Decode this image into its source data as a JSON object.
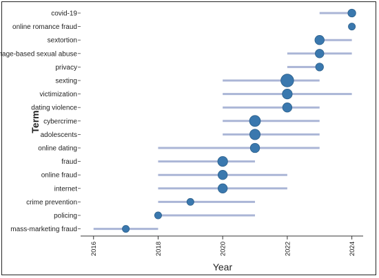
{
  "chart_data": {
    "type": "scatter",
    "xlabel": "Year",
    "ylabel": "Term",
    "xlim": [
      2015.6,
      2024.35
    ],
    "x_ticks": [
      2016,
      2018,
      2020,
      2022,
      2024
    ],
    "grid": false,
    "colors": {
      "range_bar": "#aab5d6",
      "point": "#3a78ae",
      "point_stroke": "#2c5f8a"
    },
    "series": [
      {
        "term": "covid-19",
        "start": 2023,
        "end": 2024,
        "peak": 2024,
        "frequency": 3
      },
      {
        "term": "online romance fraud",
        "start": 2024,
        "end": 2024,
        "peak": 2024,
        "frequency": 2
      },
      {
        "term": "sextortion",
        "start": 2023,
        "end": 2024,
        "peak": 2023,
        "frequency": 5
      },
      {
        "term": "image-based sexual abuse",
        "start": 2022,
        "end": 2024,
        "peak": 2023,
        "frequency": 4
      },
      {
        "term": "privacy",
        "start": 2022,
        "end": 2023,
        "peak": 2023,
        "frequency": 3
      },
      {
        "term": "sexting",
        "start": 2020,
        "end": 2023,
        "peak": 2022,
        "frequency": 12
      },
      {
        "term": "victimization",
        "start": 2020,
        "end": 2024,
        "peak": 2022,
        "frequency": 6
      },
      {
        "term": "dating violence",
        "start": 2020,
        "end": 2023,
        "peak": 2022,
        "frequency": 5
      },
      {
        "term": "cybercrime",
        "start": 2020,
        "end": 2023,
        "peak": 2021,
        "frequency": 8
      },
      {
        "term": "adolescents",
        "start": 2020,
        "end": 2023,
        "peak": 2021,
        "frequency": 7
      },
      {
        "term": "online dating",
        "start": 2018,
        "end": 2023,
        "peak": 2021,
        "frequency": 5
      },
      {
        "term": "fraud",
        "start": 2018,
        "end": 2021,
        "peak": 2020,
        "frequency": 6
      },
      {
        "term": "online fraud",
        "start": 2018,
        "end": 2022,
        "peak": 2020,
        "frequency": 5
      },
      {
        "term": "internet",
        "start": 2018,
        "end": 2022,
        "peak": 2020,
        "frequency": 5
      },
      {
        "term": "crime prevention",
        "start": 2018,
        "end": 2021,
        "peak": 2019,
        "frequency": 2
      },
      {
        "term": "policing",
        "start": 2018,
        "end": 2021,
        "peak": 2018,
        "frequency": 2
      },
      {
        "term": "mass-marketing fraud",
        "start": 2016,
        "end": 2018,
        "peak": 2017,
        "frequency": 2
      }
    ]
  }
}
